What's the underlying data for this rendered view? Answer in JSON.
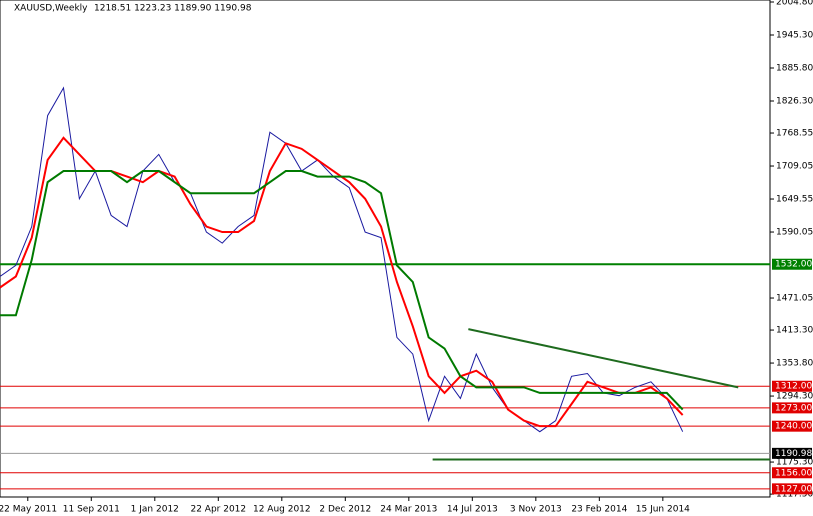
{
  "chart_data": {
    "type": "line",
    "title": "XAUUSD,Weekly",
    "subtitle": "1218.51 1223.23 1189.90 1190.98",
    "xlim": [
      0,
      194
    ],
    "xticks": [
      {
        "value": 7,
        "label": "22 May 2011"
      },
      {
        "value": 23,
        "label": "11 Sep 2011"
      },
      {
        "value": 39,
        "label": "1 Jan 2012"
      },
      {
        "value": 55,
        "label": "22 Apr 2012"
      },
      {
        "value": 71,
        "label": "12 Aug 2012"
      },
      {
        "value": 87,
        "label": "2 Dec 2012"
      },
      {
        "value": 103,
        "label": "24 Mar 2013"
      },
      {
        "value": 119,
        "label": "14 Jul 2013"
      },
      {
        "value": 135,
        "label": "3 Nov 2013"
      },
      {
        "value": 151,
        "label": "23 Feb 2014"
      },
      {
        "value": 167,
        "label": "15 Jun 2014"
      }
    ],
    "ylim": [
      1112.3,
      2008.4
    ],
    "yticks": [
      {
        "value": 2004.8,
        "label": "2004.80"
      },
      {
        "value": 1945.3,
        "label": "1945.30"
      },
      {
        "value": 1885.8,
        "label": "1885.80"
      },
      {
        "value": 1826.3,
        "label": "1826.30"
      },
      {
        "value": 1768.55,
        "label": "1768.55"
      },
      {
        "value": 1709.05,
        "label": "1709.05"
      },
      {
        "value": 1649.55,
        "label": "1649.55"
      },
      {
        "value": 1590.05,
        "label": "1590.05"
      },
      {
        "value": 1471.05,
        "label": "1471.05"
      },
      {
        "value": 1413.3,
        "label": "1413.30"
      },
      {
        "value": 1353.8,
        "label": "1353.80"
      },
      {
        "value": 1294.3,
        "label": "1294.30"
      },
      {
        "value": 1175.3,
        "label": "1175.30"
      },
      {
        "value": 1117.5,
        "label": "1117.50"
      }
    ],
    "x": [
      0,
      4,
      8,
      12,
      16,
      20,
      24,
      28,
      32,
      36,
      40,
      44,
      48,
      52,
      56,
      60,
      64,
      68,
      72,
      76,
      80,
      84,
      88,
      92,
      96,
      100,
      104,
      108,
      112,
      116,
      120,
      124,
      128,
      132,
      136,
      140,
      144,
      148,
      152,
      156,
      160,
      164,
      168,
      172
    ],
    "series": [
      {
        "color": "#1a1aa0",
        "values": [
          1510,
          1530,
          1600,
          1800,
          1850,
          1650,
          1700,
          1620,
          1600,
          1700,
          1730,
          1680,
          1660,
          1590,
          1570,
          1600,
          1620,
          1770,
          1750,
          1700,
          1720,
          1690,
          1670,
          1590,
          1580,
          1400,
          1370,
          1250,
          1330,
          1290,
          1370,
          1310,
          1270,
          1250,
          1230,
          1250,
          1330,
          1335,
          1300,
          1295,
          1310,
          1320,
          1290,
          1230
        ]
      },
      {
        "color": "#ff0000",
        "values": [
          1490,
          1510,
          1580,
          1720,
          1760,
          1730,
          1700,
          1700,
          1690,
          1680,
          1700,
          1690,
          1640,
          1600,
          1590,
          1590,
          1610,
          1700,
          1750,
          1740,
          1720,
          1700,
          1680,
          1650,
          1600,
          1500,
          1420,
          1330,
          1300,
          1330,
          1340,
          1320,
          1270,
          1250,
          1240,
          1240,
          1280,
          1320,
          1310,
          1300,
          1300,
          1310,
          1290,
          1260
        ]
      },
      {
        "color": "#007a00",
        "values": [
          1440,
          1440,
          1540,
          1680,
          1700,
          1700,
          1700,
          1700,
          1680,
          1700,
          1700,
          1680,
          1660,
          1660,
          1660,
          1660,
          1660,
          1680,
          1700,
          1700,
          1690,
          1690,
          1690,
          1680,
          1660,
          1530,
          1500,
          1400,
          1380,
          1330,
          1310,
          1310,
          1310,
          1310,
          1300,
          1300,
          1300,
          1300,
          1300,
          1300,
          1300,
          1300,
          1300,
          1270
        ]
      }
    ],
    "levels": [
      {
        "value": 1532,
        "label": "1532.00",
        "color": "#008000"
      },
      {
        "value": 1312,
        "label": "1312.00",
        "color": "#e00000"
      },
      {
        "value": 1273,
        "label": "1273.00",
        "color": "#e00000"
      },
      {
        "value": 1240,
        "label": "1240.00",
        "color": "#e00000"
      },
      {
        "value": 1156,
        "label": "1156.00",
        "color": "#e00000"
      },
      {
        "value": 1127,
        "label": "1127.00",
        "color": "#e00000"
      }
    ],
    "price": 1190.98,
    "trendlines": [
      {
        "x": [
          118,
          186
        ],
        "values": [
          1415,
          1310
        ],
        "color": "#1e6b1e"
      },
      {
        "x": [
          109,
          194
        ],
        "values": [
          1180,
          1180
        ],
        "color": "#1e6b1e"
      }
    ]
  }
}
